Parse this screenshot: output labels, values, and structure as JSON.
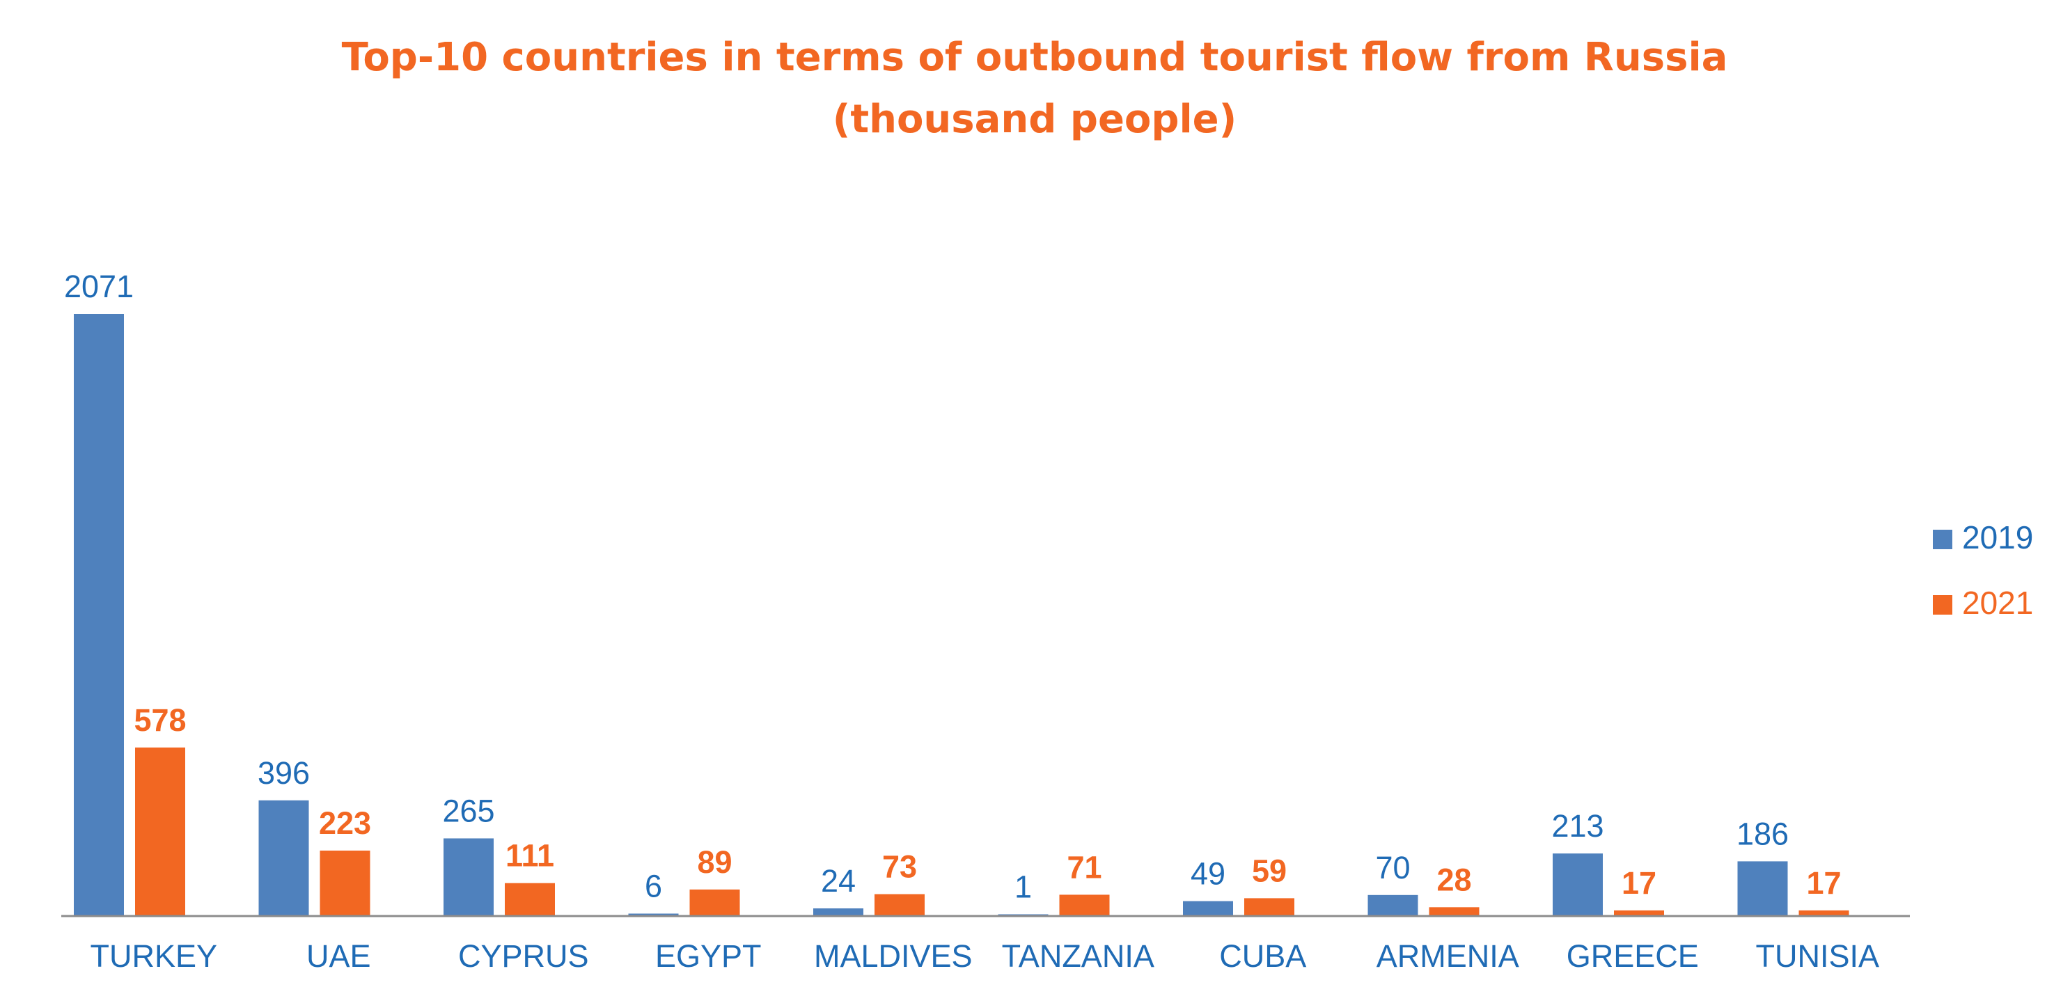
{
  "chart_data": {
    "type": "bar",
    "title": "Top-10 countries in terms of outbound tourist flow from Russia",
    "subtitle": "(thousand people)",
    "categories": [
      "TURKEY",
      "UAE",
      "CYPRUS",
      "EGYPT",
      "MALDIVES",
      "TANZANIA",
      "CUBA",
      "ARMENIA",
      "GREECE",
      "TUNISIA"
    ],
    "series": [
      {
        "name": "2019",
        "color": "#4f81bd",
        "label_color": "#1f6bb5",
        "values": [
          2071,
          396,
          265,
          6,
          24,
          1,
          49,
          70,
          213,
          186
        ]
      },
      {
        "name": "2021",
        "color": "#f26722",
        "label_color": "#f26722",
        "values": [
          578,
          223,
          111,
          89,
          73,
          71,
          59,
          28,
          17,
          17
        ]
      }
    ],
    "ylim": [
      0,
      2071
    ],
    "xlabel": "",
    "ylabel": "",
    "grid": false,
    "legend_position": "right",
    "title_color": "#f26722",
    "category_label_color": "#1f6bb5",
    "axis_color": "#8c8c8c"
  }
}
